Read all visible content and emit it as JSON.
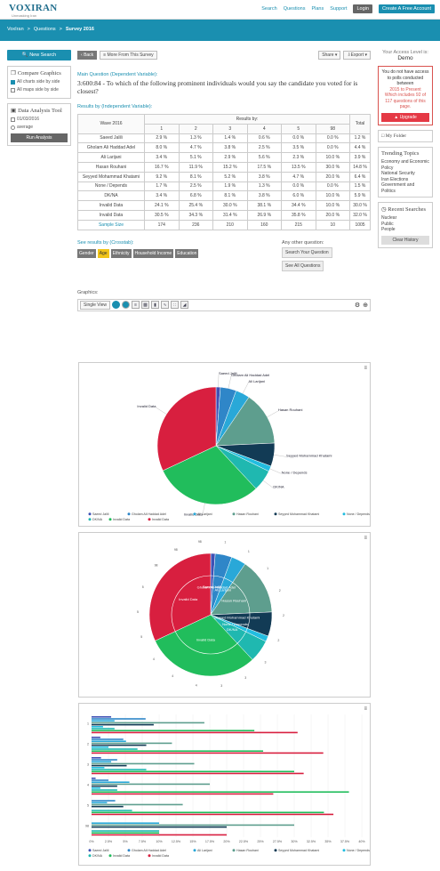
{
  "header": {
    "logo": "VOXIRAN",
    "tagline": "Unmasking Iran",
    "nav": [
      "Search",
      "Questions",
      "Plans",
      "Support"
    ],
    "login": "Login",
    "free_account": "Create A Free Account"
  },
  "breadcrumb": [
    "VoxIran",
    ">",
    "Questions",
    ">",
    "Survey 2016"
  ],
  "left": {
    "new_search": "New Search",
    "compare_title": "Compare Graphics",
    "opt_all_charts": "All charts side by side",
    "opt_all_maps": "All maps side by side",
    "tool_title": "Data Analysis Tool",
    "date": "01/03/2016",
    "average": "average",
    "run": "Run Analysis"
  },
  "toolbar": {
    "back": "Back",
    "more": "More From This Survey",
    "share": "Share",
    "export": "Export"
  },
  "question": {
    "label": "Main Question (Dependent Variable):",
    "text": "3:600:84 - To which of the following prominent individuals would you say the candidate you voted for is closest?",
    "results_label": "Results by (Independent Variable):"
  },
  "table": {
    "wave_header": "Wave 2016",
    "results_by": "Results by:",
    "total_header": "Total",
    "cols": [
      "1",
      "2",
      "3",
      "4",
      "5",
      "98"
    ],
    "rows": [
      {
        "label": "Saeed Jalili",
        "vals": [
          "2.9 %",
          "1.3 %",
          "1.4 %",
          "0.6 %",
          "0.0 %",
          "0.0 %"
        ],
        "total": "1.2 %"
      },
      {
        "label": "Gholam Ali Haddad Adel",
        "vals": [
          "8.0 %",
          "4.7 %",
          "3.8 %",
          "2.5 %",
          "3.5 %",
          "0.0 %"
        ],
        "total": "4.4 %"
      },
      {
        "label": "Ali Larijani",
        "vals": [
          "3.4 %",
          "5.1 %",
          "2.9 %",
          "5.6 %",
          "2.3 %",
          "10.0 %"
        ],
        "total": "3.9 %"
      },
      {
        "label": "Hasan Rouhani",
        "vals": [
          "16.7 %",
          "11.9 %",
          "15.2 %",
          "17.5 %",
          "13.5 %",
          "30.0 %"
        ],
        "total": "14.8 %"
      },
      {
        "label": "Seyyed Mohammad Khatami",
        "vals": [
          "9.2 %",
          "8.1 %",
          "5.2 %",
          "3.8 %",
          "4.7 %",
          "20.0 %"
        ],
        "total": "6.4 %"
      },
      {
        "label": "None / Depends",
        "vals": [
          "1.7 %",
          "2.5 %",
          "1.9 %",
          "1.3 %",
          "0.0 %",
          "0.0 %"
        ],
        "total": "1.5 %"
      },
      {
        "label": "DK/NA",
        "vals": [
          "3.4 %",
          "6.8 %",
          "8.1 %",
          "3.8 %",
          "6.0 %",
          "10.0 %"
        ],
        "total": "5.9 %"
      },
      {
        "label": "Invalid Data",
        "vals": [
          "24.1 %",
          "25.4 %",
          "30.0 %",
          "38.1 %",
          "34.4 %",
          "10.0 %"
        ],
        "total": "30.0 %"
      },
      {
        "label": "Invalid Data",
        "vals": [
          "30.5 %",
          "34.3 %",
          "31.4 %",
          "26.9 %",
          "35.8 %",
          "20.0 %"
        ],
        "total": "32.0 %"
      }
    ],
    "sample_label": "Sample Size",
    "sample": [
      "174",
      "236",
      "210",
      "160",
      "215",
      "10"
    ],
    "sample_total": "1005"
  },
  "crosstab": {
    "label": "See results by (Crosstab):",
    "chips": [
      "Gender",
      "Age",
      "Ethnicity",
      "Household Income",
      "Education"
    ],
    "other_label": "Any other question:",
    "search_btn": "Search Your Question",
    "see_all": "See All Questions"
  },
  "graphics": {
    "label": "Graphics:",
    "single_view": "Single View"
  },
  "right": {
    "access_label": "Your Access Level is:",
    "access_level": "Demo",
    "warn_text": "You do not have access to polls conducted between",
    "warn_range": "2015 to Present",
    "warn_more": "Which includes 92 of 117 questions of this page.",
    "upgrade": "Upgrade",
    "folder": "My Folder",
    "trending_title": "Trending Topics",
    "trending": [
      "Economy and Economic Policy",
      "National Security",
      "Iran Elections",
      "Government and Politics"
    ],
    "recent_title": "Recent Searches",
    "recent": [
      "Nuclear",
      "Public",
      "People"
    ],
    "clear": "Clear History"
  },
  "colors": {
    "accent": "#1a8fb0",
    "series": [
      "#3f51b5",
      "#2f86c8",
      "#29a8d8",
      "#5e9e8e",
      "#123b55",
      "#22bde0",
      "#1fb8b0",
      "#21bd5c",
      "#d81f3f"
    ]
  },
  "chart_data": [
    {
      "type": "pie",
      "labels": [
        "Saeed Jalili",
        "Gholam Ali Haddad Adel",
        "Ali Larijani",
        "Hasan Rouhani",
        "Seyyed Mohammad Khatami",
        "None / Depends",
        "DK/NA",
        "Invalid Data",
        "Invalid Data"
      ],
      "values": [
        1.2,
        4.4,
        3.9,
        14.8,
        6.4,
        1.5,
        5.9,
        30.0,
        32.0
      ]
    },
    {
      "type": "pie",
      "note_labels": [
        "1",
        "2",
        "3",
        "4",
        "5",
        "98"
      ],
      "labels": [
        "Saeed Jalili",
        "Gholam Ali Haddad Adel",
        "Ali Larijani",
        "Hasan Rouhani",
        "Seyyed Mohammad Khatami",
        "None / Depends",
        "DK/NA",
        "Invalid Data",
        "Invalid Data"
      ],
      "values": [
        1.2,
        4.4,
        3.9,
        14.8,
        6.4,
        1.5,
        5.9,
        30.0,
        32.0
      ]
    },
    {
      "type": "bar",
      "categories": [
        "1",
        "2",
        "3",
        "4",
        "5",
        "98"
      ],
      "xticks": [
        "0%",
        "2.5%",
        "5%",
        "7.5%",
        "10%",
        "12.5%",
        "15%",
        "17.5%",
        "20%",
        "22.5%",
        "25%",
        "27.5%",
        "30%",
        "32.5%",
        "35%",
        "37.5%",
        "40%"
      ],
      "xlim": [
        0,
        40
      ]
    }
  ]
}
